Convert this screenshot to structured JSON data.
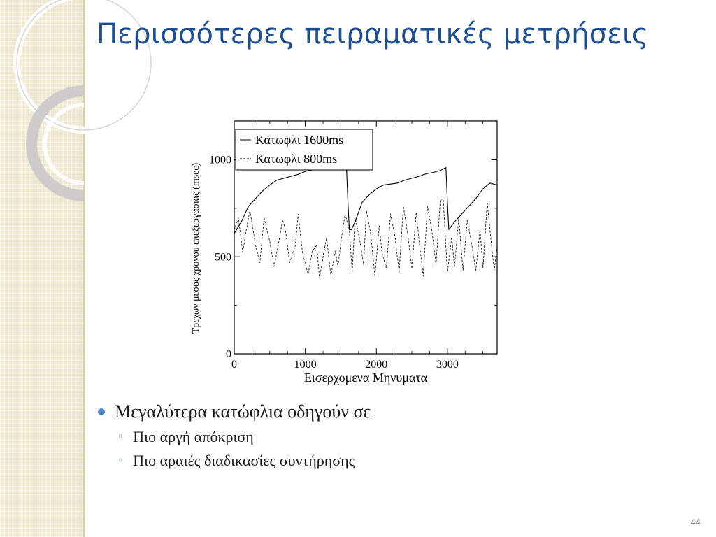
{
  "slide": {
    "title": "Περισσότερες πειραματικές μετρήσεις",
    "page_number": "44"
  },
  "bullets": [
    {
      "text": "Μεγαλύτερα κατώφλια οδηγούν σε",
      "sub": [
        "Πιο αργή απόκριση",
        "Πιο αραιές διαδικασίες συντήρησης"
      ]
    }
  ],
  "colors": {
    "title": "#1f4e8c",
    "bullet": "#4e86c6",
    "sidebar": "#ede8cf"
  },
  "chart_data": {
    "type": "line",
    "xlabel": "Εισερχομενα Μηνυματα",
    "ylabel": "Τρεχων μεσος χρονου επεξεργασιας (msec)",
    "xlim": [
      0,
      3700
    ],
    "ylim": [
      0,
      1200
    ],
    "x_ticks": [
      0,
      1000,
      2000,
      3000
    ],
    "y_ticks": [
      0,
      500,
      1000
    ],
    "legend_position": "top-left",
    "grid": false,
    "series": [
      {
        "name": "Κατωφλι 1600ms",
        "style": "solid",
        "x": [
          0,
          50,
          100,
          150,
          200,
          300,
          400,
          500,
          600,
          700,
          800,
          900,
          1000,
          1100,
          1200,
          1300,
          1400,
          1500,
          1580,
          1600,
          1620,
          1650,
          1700,
          1800,
          1900,
          2000,
          2100,
          2200,
          2300,
          2400,
          2500,
          2600,
          2700,
          2800,
          2900,
          2980,
          3000,
          3020,
          3100,
          3200,
          3300,
          3400,
          3500,
          3600,
          3700
        ],
        "y": [
          620,
          650,
          680,
          720,
          760,
          800,
          840,
          870,
          895,
          905,
          915,
          925,
          940,
          948,
          955,
          958,
          962,
          965,
          955,
          780,
          640,
          640,
          680,
          780,
          820,
          850,
          870,
          875,
          880,
          895,
          905,
          915,
          928,
          935,
          945,
          960,
          780,
          640,
          680,
          720,
          760,
          800,
          850,
          880,
          870
        ]
      },
      {
        "name": "Κατωφλι 800ms",
        "style": "dashed",
        "x": [
          0,
          60,
          120,
          160,
          220,
          300,
          360,
          420,
          500,
          560,
          620,
          680,
          720,
          780,
          860,
          900,
          960,
          1040,
          1100,
          1160,
          1200,
          1260,
          1300,
          1360,
          1420,
          1460,
          1500,
          1560,
          1620,
          1660,
          1700,
          1760,
          1820,
          1860,
          1920,
          1980,
          2040,
          2080,
          2140,
          2200,
          2260,
          2320,
          2380,
          2440,
          2500,
          2560,
          2600,
          2660,
          2720,
          2780,
          2840,
          2900,
          2940,
          3000,
          3060,
          3100,
          3160,
          3220,
          3280,
          3340,
          3400,
          3460,
          3500,
          3560,
          3620,
          3660,
          3700
        ],
        "y": [
          640,
          700,
          520,
          620,
          740,
          560,
          470,
          700,
          580,
          450,
          560,
          690,
          640,
          470,
          560,
          720,
          520,
          410,
          530,
          560,
          390,
          520,
          600,
          400,
          530,
          450,
          570,
          720,
          640,
          420,
          700,
          600,
          460,
          740,
          620,
          400,
          660,
          520,
          440,
          720,
          610,
          420,
          760,
          620,
          440,
          730,
          590,
          400,
          760,
          640,
          460,
          790,
          800,
          420,
          600,
          450,
          700,
          430,
          690,
          570,
          430,
          640,
          440,
          780,
          560,
          430,
          560
        ]
      }
    ]
  }
}
